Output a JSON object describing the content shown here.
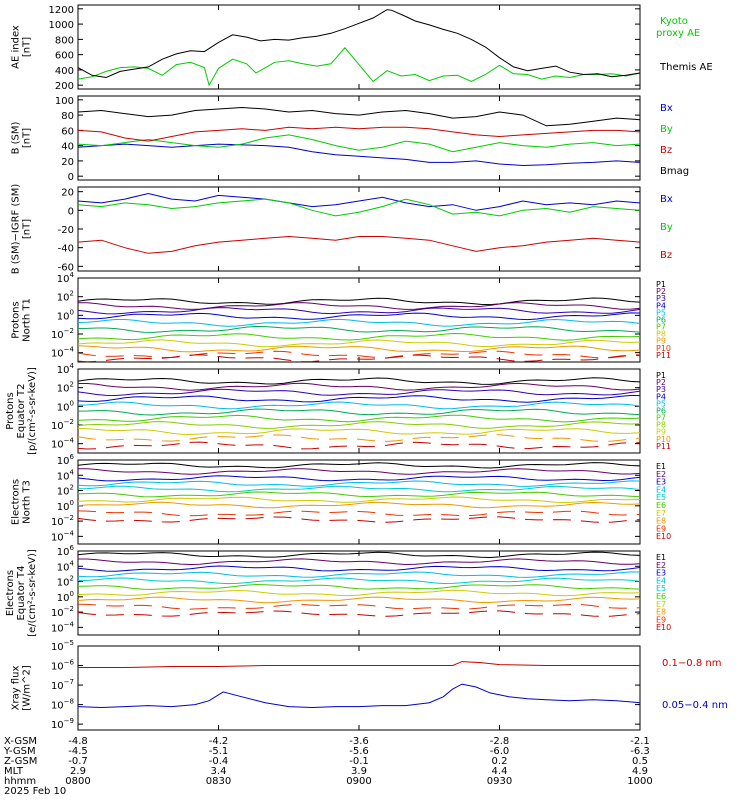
{
  "chart_data": [
    {
      "type": "line",
      "id": "ae",
      "ylabel_lines": [
        "AE index",
        "[nT]"
      ],
      "yticks": [
        200,
        400,
        600,
        800,
        1000,
        1200
      ],
      "ylim": [
        150,
        1250
      ],
      "log": false,
      "series": [
        {
          "name": "Kyoto",
          "name2": "proxy AE",
          "color": "#00cc00",
          "x": [
            0,
            3,
            6,
            9,
            12,
            15,
            18,
            21,
            24,
            27,
            28,
            30,
            33,
            36,
            38,
            42,
            45,
            48,
            51,
            54,
            57,
            60,
            63,
            66,
            69,
            72,
            75,
            78,
            81,
            84,
            87,
            90,
            93,
            96,
            99,
            102,
            105,
            108,
            111,
            114,
            117,
            120
          ],
          "y": [
            280,
            310,
            380,
            430,
            440,
            420,
            330,
            470,
            500,
            430,
            200,
            420,
            540,
            480,
            360,
            500,
            520,
            480,
            450,
            480,
            690,
            470,
            250,
            390,
            320,
            340,
            260,
            320,
            330,
            250,
            340,
            460,
            350,
            340,
            280,
            320,
            300,
            340,
            340,
            350,
            320,
            360
          ]
        },
        {
          "name": "Themis AE",
          "color": "#000000",
          "x": [
            0,
            3,
            6,
            9,
            12,
            15,
            18,
            21,
            24,
            27,
            30,
            33,
            36,
            39,
            42,
            45,
            48,
            51,
            54,
            57,
            60,
            63,
            66,
            67,
            70,
            72,
            75,
            78,
            81,
            84,
            87,
            90,
            93,
            96,
            99,
            102,
            105,
            108,
            111,
            114,
            117,
            120
          ],
          "y": [
            430,
            330,
            300,
            380,
            410,
            440,
            540,
            610,
            650,
            640,
            760,
            860,
            830,
            780,
            800,
            790,
            820,
            840,
            880,
            940,
            1010,
            1080,
            1190,
            1180,
            1100,
            1040,
            990,
            930,
            880,
            800,
            700,
            560,
            440,
            390,
            420,
            450,
            370,
            340,
            350,
            310,
            330,
            360
          ]
        }
      ]
    },
    {
      "type": "line",
      "id": "bsm",
      "ylabel_lines": [
        "B (SM)",
        "[nT]"
      ],
      "yticks": [
        0,
        20,
        40,
        60,
        80,
        100
      ],
      "ylim": [
        -5,
        105
      ],
      "log": false,
      "series": [
        {
          "name": "Bx",
          "color": "#0000cc",
          "x": [
            0,
            5,
            10,
            15,
            20,
            25,
            30,
            35,
            40,
            45,
            50,
            55,
            60,
            65,
            70,
            75,
            80,
            85,
            90,
            95,
            100,
            105,
            110,
            115,
            120
          ],
          "y": [
            38,
            40,
            42,
            40,
            38,
            40,
            42,
            41,
            40,
            38,
            32,
            28,
            26,
            24,
            22,
            18,
            18,
            20,
            16,
            14,
            15,
            17,
            18,
            20,
            18
          ]
        },
        {
          "name": "By",
          "color": "#00cc00",
          "x": [
            0,
            5,
            10,
            15,
            20,
            25,
            30,
            35,
            40,
            45,
            50,
            55,
            60,
            65,
            70,
            75,
            80,
            85,
            90,
            95,
            100,
            105,
            110,
            115,
            120
          ],
          "y": [
            42,
            40,
            44,
            48,
            44,
            40,
            38,
            42,
            50,
            54,
            48,
            40,
            34,
            38,
            46,
            42,
            32,
            38,
            44,
            40,
            38,
            42,
            44,
            40,
            42
          ]
        },
        {
          "name": "Bz",
          "color": "#cc0000",
          "x": [
            0,
            5,
            10,
            15,
            20,
            25,
            30,
            35,
            40,
            45,
            50,
            55,
            60,
            65,
            70,
            75,
            80,
            85,
            90,
            95,
            100,
            105,
            110,
            115,
            120
          ],
          "y": [
            60,
            58,
            50,
            46,
            52,
            58,
            60,
            62,
            60,
            64,
            62,
            64,
            62,
            64,
            64,
            62,
            58,
            54,
            52,
            54,
            56,
            58,
            60,
            60,
            58
          ]
        },
        {
          "name": "Bmag",
          "color": "#000000",
          "x": [
            0,
            5,
            10,
            15,
            20,
            25,
            30,
            35,
            40,
            45,
            50,
            55,
            60,
            65,
            70,
            75,
            80,
            85,
            90,
            95,
            100,
            105,
            110,
            115,
            120
          ],
          "y": [
            84,
            86,
            82,
            78,
            80,
            86,
            88,
            90,
            88,
            84,
            86,
            82,
            80,
            84,
            86,
            82,
            76,
            78,
            84,
            80,
            66,
            68,
            72,
            76,
            74
          ]
        }
      ]
    },
    {
      "type": "line",
      "id": "bsmigrf",
      "ylabel_lines": [
        "B (SM)−IGRF (SM)",
        "[nT]"
      ],
      "yticks": [
        -60,
        -40,
        -20,
        0,
        20
      ],
      "ylim": [
        -65,
        25
      ],
      "log": false,
      "series": [
        {
          "name": "Bx",
          "color": "#0000cc",
          "x": [
            0,
            5,
            10,
            15,
            20,
            25,
            30,
            35,
            40,
            45,
            50,
            55,
            60,
            65,
            70,
            75,
            80,
            85,
            90,
            95,
            100,
            105,
            110,
            115,
            120
          ],
          "y": [
            10,
            8,
            12,
            18,
            12,
            10,
            16,
            14,
            12,
            8,
            4,
            6,
            10,
            14,
            8,
            4,
            6,
            0,
            4,
            10,
            6,
            8,
            6,
            10,
            8
          ]
        },
        {
          "name": "By",
          "color": "#00cc00",
          "x": [
            0,
            5,
            10,
            15,
            20,
            25,
            30,
            35,
            40,
            45,
            50,
            55,
            60,
            65,
            70,
            75,
            80,
            85,
            90,
            95,
            100,
            105,
            110,
            115,
            120
          ],
          "y": [
            6,
            4,
            8,
            6,
            2,
            4,
            8,
            10,
            12,
            8,
            0,
            -6,
            -2,
            4,
            12,
            6,
            -4,
            -2,
            -6,
            0,
            2,
            -2,
            4,
            2,
            0
          ]
        },
        {
          "name": "Bz",
          "color": "#cc0000",
          "x": [
            0,
            5,
            10,
            15,
            20,
            25,
            30,
            35,
            40,
            45,
            50,
            55,
            60,
            65,
            70,
            75,
            80,
            85,
            90,
            95,
            100,
            105,
            110,
            115,
            120
          ],
          "y": [
            -34,
            -32,
            -40,
            -46,
            -44,
            -38,
            -34,
            -32,
            -30,
            -28,
            -30,
            -32,
            -28,
            -28,
            -30,
            -32,
            -38,
            -44,
            -40,
            -38,
            -34,
            -32,
            -30,
            -32,
            -34
          ]
        }
      ]
    },
    {
      "type": "line",
      "id": "pt1",
      "ylabel_lines": [
        "Protons",
        "North T1"
      ],
      "yticks_exp": [
        -4,
        -2,
        0,
        2,
        4
      ],
      "ylim_exp": [
        -5,
        4
      ],
      "log": true,
      "series": [
        {
          "name": "P1",
          "color": "#000000",
          "level": 1.5
        },
        {
          "name": "P2",
          "color": "#660066",
          "level": 1.0
        },
        {
          "name": "P3",
          "color": "#3300aa",
          "level": 0.5
        },
        {
          "name": "P4",
          "color": "#0000cc",
          "level": -0.1
        },
        {
          "name": "P5",
          "color": "#00bbee",
          "level": -0.8
        },
        {
          "name": "P6",
          "color": "#00aa55",
          "level": -1.5
        },
        {
          "name": "P7",
          "color": "#44cc00",
          "level": -2.3
        },
        {
          "name": "P8",
          "color": "#cccc00",
          "level": -3.0
        },
        {
          "name": "P9",
          "color": "#ee9900",
          "level": -3.6
        },
        {
          "name": "P10",
          "color": "#ee3300",
          "level": -4.2
        },
        {
          "name": "P11",
          "color": "#cc0000",
          "level": -4.6
        }
      ]
    },
    {
      "type": "line",
      "id": "pt2",
      "ylabel_lines": [
        "Protons",
        "Equator T2",
        "[p/(cm²-s-sr-keV)]"
      ],
      "yticks_exp": [
        -4,
        -2,
        0,
        2,
        4
      ],
      "ylim_exp": [
        -5,
        4
      ],
      "log": true,
      "series": [
        {
          "name": "P1",
          "color": "#000000",
          "level": 2.7
        },
        {
          "name": "P2",
          "color": "#660066",
          "level": 2.1
        },
        {
          "name": "P3",
          "color": "#3300aa",
          "level": 1.5
        },
        {
          "name": "P4",
          "color": "#0000cc",
          "level": 0.8
        },
        {
          "name": "P5",
          "color": "#00bbee",
          "level": 0.1
        },
        {
          "name": "P6",
          "color": "#00aa55",
          "level": -0.6
        },
        {
          "name": "P7",
          "color": "#44cc00",
          "level": -1.3
        },
        {
          "name": "P8",
          "color": "#88cc00",
          "level": -2.0
        },
        {
          "name": "P9",
          "color": "#cccc00",
          "level": -2.7
        },
        {
          "name": "P10",
          "color": "#ee9900",
          "level": -3.4
        },
        {
          "name": "P11",
          "color": "#cc0000",
          "level": -4.2
        }
      ]
    },
    {
      "type": "line",
      "id": "et3",
      "ylabel_lines": [
        "Electrons",
        "North T3"
      ],
      "yticks_exp": [
        -4,
        -2,
        0,
        2,
        4,
        6
      ],
      "ylim_exp": [
        -5,
        6
      ],
      "log": true,
      "series": [
        {
          "name": "E1",
          "color": "#000000",
          "level": 5.3
        },
        {
          "name": "E2",
          "color": "#660066",
          "level": 4.5
        },
        {
          "name": "E3",
          "color": "#0000cc",
          "level": 3.6
        },
        {
          "name": "E4",
          "color": "#00bbee",
          "level": 2.9
        },
        {
          "name": "E5",
          "color": "#00cccc",
          "level": 2.2
        },
        {
          "name": "E6",
          "color": "#44cc00",
          "level": 1.5
        },
        {
          "name": "E7",
          "color": "#cccc00",
          "level": 0.8
        },
        {
          "name": "E8",
          "color": "#ee9900",
          "level": 0.1
        },
        {
          "name": "E9",
          "color": "#ee3300",
          "level": -1.0
        },
        {
          "name": "E10",
          "color": "#cc0000",
          "level": -1.8
        }
      ]
    },
    {
      "type": "line",
      "id": "et4",
      "ylabel_lines": [
        "Electrons",
        "Equator T4",
        "[e/(cm²-s-sr-keV)]"
      ],
      "yticks_exp": [
        -4,
        -2,
        0,
        2,
        4,
        6
      ],
      "ylim_exp": [
        -5,
        6
      ],
      "log": true,
      "series": [
        {
          "name": "E1",
          "color": "#000000",
          "level": 5.5
        },
        {
          "name": "E2",
          "color": "#660066",
          "level": 4.6
        },
        {
          "name": "E3",
          "color": "#0000cc",
          "level": 3.7
        },
        {
          "name": "E4",
          "color": "#00bbee",
          "level": 2.9
        },
        {
          "name": "E5",
          "color": "#00cccc",
          "level": 2.1
        },
        {
          "name": "E6",
          "color": "#44cc00",
          "level": 1.3
        },
        {
          "name": "E7",
          "color": "#cccc00",
          "level": 0.5
        },
        {
          "name": "E8",
          "color": "#ee9900",
          "level": -0.4
        },
        {
          "name": "E9",
          "color": "#ee3300",
          "level": -1.3
        },
        {
          "name": "E10",
          "color": "#cc0000",
          "level": -2.2
        }
      ]
    },
    {
      "type": "line",
      "id": "xray",
      "ylabel_lines": [
        "Xray flux",
        "[W/m^2]"
      ],
      "yticks_exp": [
        -9,
        -8,
        -7,
        -6,
        -5
      ],
      "ylim_exp": [
        -9.3,
        -5
      ],
      "log": true,
      "series": [
        {
          "name": "0.1−0.8 nm",
          "color": "#cc0000",
          "x": [
            0,
            10,
            20,
            30,
            40,
            50,
            60,
            70,
            80,
            82,
            86,
            90,
            100,
            110,
            120
          ],
          "y": [
            -6.1,
            -6.1,
            -6.05,
            -6.05,
            -6.0,
            -6.0,
            -6.0,
            -6.0,
            -6.0,
            -5.8,
            -5.85,
            -5.95,
            -6.0,
            -6.0,
            -6.0
          ]
        },
        {
          "name": "0.05−0.4 nm",
          "color": "#0000cc",
          "x": [
            0,
            5,
            10,
            15,
            20,
            25,
            28,
            31,
            35,
            40,
            45,
            50,
            55,
            60,
            65,
            70,
            75,
            78,
            80,
            82,
            85,
            88,
            92,
            96,
            100,
            105,
            110,
            115,
            120
          ],
          "y": [
            -8.1,
            -8.15,
            -8.1,
            -8.05,
            -8.1,
            -8.0,
            -7.8,
            -7.35,
            -7.6,
            -7.9,
            -8.1,
            -8.15,
            -8.1,
            -8.1,
            -8.05,
            -8.05,
            -7.9,
            -7.6,
            -7.2,
            -6.95,
            -7.1,
            -7.4,
            -7.6,
            -7.7,
            -7.75,
            -7.8,
            -7.75,
            -7.8,
            -7.9
          ]
        }
      ]
    }
  ],
  "xaxis": {
    "tick_minutes": [
      0,
      30,
      60,
      90,
      120
    ],
    "rows": [
      {
        "label": "X-GSM",
        "values": [
          "-4.8",
          "-4.2",
          "-3.6",
          "-2.8",
          "-2.1"
        ]
      },
      {
        "label": "Y-GSM",
        "values": [
          "-4.5",
          "-5.1",
          "-5.6",
          "-6.0",
          "-6.3"
        ]
      },
      {
        "label": "Z-GSM",
        "values": [
          "-0.7",
          "-0.4",
          "-0.1",
          "0.2",
          "0.5"
        ]
      },
      {
        "label": "MLT",
        "values": [
          "2.9",
          "3.4",
          "3.9",
          "4.4",
          "4.9"
        ]
      },
      {
        "label": "hhmm",
        "values": [
          "0800",
          "0830",
          "0900",
          "0930",
          "1000"
        ]
      }
    ],
    "date": "2025 Feb 10"
  }
}
